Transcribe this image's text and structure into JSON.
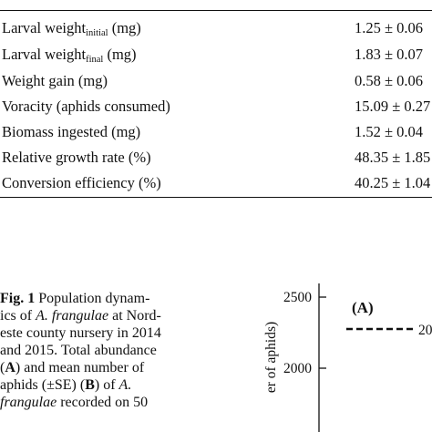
{
  "table": {
    "rows": [
      {
        "label_main": "Larval weight",
        "label_sub": "initial",
        "label_rest": " (mg)",
        "value": "1.25 ± 0.06"
      },
      {
        "label_main": "Larval weight",
        "label_sub": "final",
        "label_rest": " (mg)",
        "value": "1.83 ± 0.07"
      },
      {
        "label_main": "Weight gain (mg)",
        "label_sub": "",
        "label_rest": "",
        "value": "0.58 ± 0.06"
      },
      {
        "label_main": "Voracity (aphids consumed)",
        "label_sub": "",
        "label_rest": "",
        "value": "15.09 ± 0.27"
      },
      {
        "label_main": "Biomass ingested (mg)",
        "label_sub": "",
        "label_rest": "",
        "value": "1.52 ± 0.04"
      },
      {
        "label_main": "Relative growth rate (%)",
        "label_sub": "",
        "label_rest": "",
        "value": "48.35 ± 1.85"
      },
      {
        "label_main": "Conversion efficiency (%)",
        "label_sub": "",
        "label_rest": "",
        "value": "40.25 ± 1.04"
      }
    ]
  },
  "caption": {
    "fig_label": "Fig. 1",
    "l1_text": "  Population dynam-",
    "l2_a": "ics of ",
    "l2_species": "A. frangulae",
    "l2_b": " at Nord-",
    "l3": "este county nursery in 2014",
    "l4": "and 2015. Total abundance",
    "l5_open": "(",
    "l5_A": "A",
    "l5_b": ") and mean number of",
    "l6_a": "aphids (±SE) (",
    "l6_B": "B",
    "l6_b": ") of ",
    "l6_species": "A.",
    "l7_species": "frangulae",
    "l7_b": " recorded on 50"
  },
  "chart_data": {
    "type": "line",
    "panel_label": "(A)",
    "ylabel": "er of aphids)",
    "yticks": [
      2000,
      2500
    ],
    "ylim": [
      1800,
      2540
    ],
    "series": [
      {
        "name": "20",
        "style": "dashed",
        "values": []
      }
    ]
  }
}
